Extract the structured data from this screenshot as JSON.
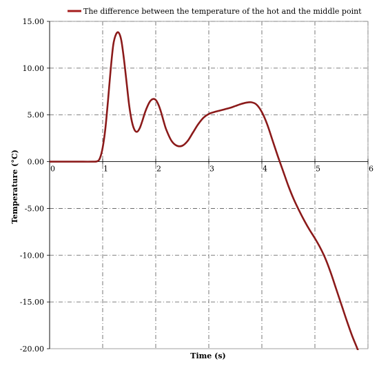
{
  "chart_data": {
    "type": "line",
    "title": "",
    "xlabel": "Time (s)",
    "ylabel": "Temperature (°C)",
    "xlim": [
      0,
      6
    ],
    "ylim": [
      -20,
      15
    ],
    "xticks": [
      0,
      1,
      2,
      3,
      4,
      5,
      6
    ],
    "yticks": [
      15,
      10,
      5,
      0,
      -5,
      -10,
      -15,
      -20
    ],
    "ytick_labels": [
      "15.00",
      "10.00",
      "5.00",
      "0.00",
      "-5.00",
      "-10.00",
      "-15.00",
      "-20.00"
    ],
    "grid": true,
    "legend_position": "top",
    "series": [
      {
        "name": "The difference between the temperature of the hot and the middle point",
        "color": "#8b1a1a",
        "x": [
          0,
          0.5,
          0.8,
          0.9,
          0.95,
          1.0,
          1.05,
          1.1,
          1.15,
          1.2,
          1.25,
          1.3,
          1.35,
          1.4,
          1.45,
          1.5,
          1.55,
          1.6,
          1.65,
          1.7,
          1.75,
          1.8,
          1.85,
          1.9,
          1.95,
          2.0,
          2.05,
          2.1,
          2.15,
          2.2,
          2.3,
          2.4,
          2.5,
          2.6,
          2.7,
          2.8,
          2.9,
          3.0,
          3.1,
          3.2,
          3.3,
          3.4,
          3.5,
          3.6,
          3.7,
          3.8,
          3.9,
          4.0,
          4.1,
          4.2,
          4.3,
          4.4,
          4.5,
          4.6,
          4.7,
          4.8,
          4.9,
          5.0,
          5.1,
          5.2,
          5.3,
          5.4,
          5.5,
          5.6,
          5.7,
          5.8,
          5.9,
          6.0
        ],
        "y": [
          0,
          0,
          0,
          0.05,
          0.4,
          1.5,
          3.5,
          6.5,
          9.8,
          12.5,
          13.6,
          13.8,
          13.0,
          11.0,
          8.5,
          6.0,
          4.3,
          3.4,
          3.2,
          3.6,
          4.4,
          5.3,
          6.0,
          6.5,
          6.7,
          6.6,
          6.1,
          5.3,
          4.3,
          3.4,
          2.2,
          1.7,
          1.7,
          2.2,
          3.1,
          4.0,
          4.7,
          5.1,
          5.3,
          5.45,
          5.6,
          5.75,
          5.95,
          6.15,
          6.3,
          6.35,
          6.1,
          5.3,
          4.0,
          2.3,
          0.6,
          -1.0,
          -2.6,
          -4.0,
          -5.2,
          -6.3,
          -7.3,
          -8.2,
          -9.2,
          -10.4,
          -11.9,
          -13.6,
          -15.3,
          -17.0,
          -18.6,
          -20.0,
          -21.5,
          -23.0
        ]
      }
    ]
  }
}
